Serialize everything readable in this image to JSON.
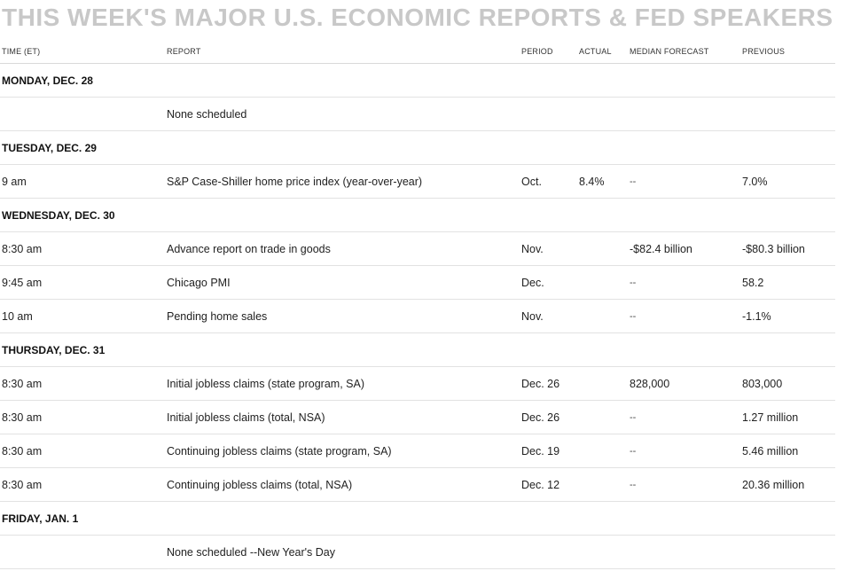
{
  "title": "THIS WEEK'S MAJOR U.S. ECONOMIC REPORTS & FED SPEAKERS",
  "columns": [
    "TIME (ET)",
    "REPORT",
    "PERIOD",
    "ACTUAL",
    "MEDIAN FORECAST",
    "PREVIOUS"
  ],
  "days": [
    {
      "label": "MONDAY, DEC. 28",
      "rows": [
        {
          "time": "",
          "report": "None scheduled",
          "period": "",
          "actual": "",
          "median": "",
          "previous": ""
        }
      ]
    },
    {
      "label": "TUESDAY, DEC. 29",
      "rows": [
        {
          "time": "9 am",
          "report": "S&P Case-Shiller home price index (year-over-year)",
          "period": "Oct.",
          "actual": "8.4%",
          "median": "--",
          "previous": "7.0%"
        }
      ]
    },
    {
      "label": "WEDNESDAY, DEC. 30",
      "rows": [
        {
          "time": "8:30 am",
          "report": "Advance report on trade in goods",
          "period": "Nov.",
          "actual": "",
          "median": "-$82.4 billion",
          "previous": "-$80.3 billion"
        },
        {
          "time": "9:45 am",
          "report": "Chicago PMI",
          "period": "Dec.",
          "actual": "",
          "median": "--",
          "previous": "58.2"
        },
        {
          "time": "10 am",
          "report": "Pending home sales",
          "period": "Nov.",
          "actual": "",
          "median": "--",
          "previous": "-1.1%"
        }
      ]
    },
    {
      "label": "THURSDAY, DEC. 31",
      "rows": [
        {
          "time": "8:30 am",
          "report": "Initial jobless claims (state program, SA)",
          "period": "Dec. 26",
          "actual": "",
          "median": "828,000",
          "previous": "803,000"
        },
        {
          "time": "8:30 am",
          "report": "Initial jobless claims (total, NSA)",
          "period": "Dec. 26",
          "actual": "",
          "median": "--",
          "previous": "1.27 million"
        },
        {
          "time": "8:30 am",
          "report": "Continuing jobless claims (state program, SA)",
          "period": "Dec. 19",
          "actual": "",
          "median": "--",
          "previous": "5.46 million"
        },
        {
          "time": "8:30 am",
          "report": "Continuing jobless claims (total, NSA)",
          "period": "Dec. 12",
          "actual": "",
          "median": "--",
          "previous": "20.36 million"
        }
      ]
    },
    {
      "label": "FRIDAY, JAN. 1",
      "rows": [
        {
          "time": "",
          "report": "None scheduled --New Year's Day",
          "period": "",
          "actual": "",
          "median": "",
          "previous": ""
        }
      ]
    }
  ]
}
